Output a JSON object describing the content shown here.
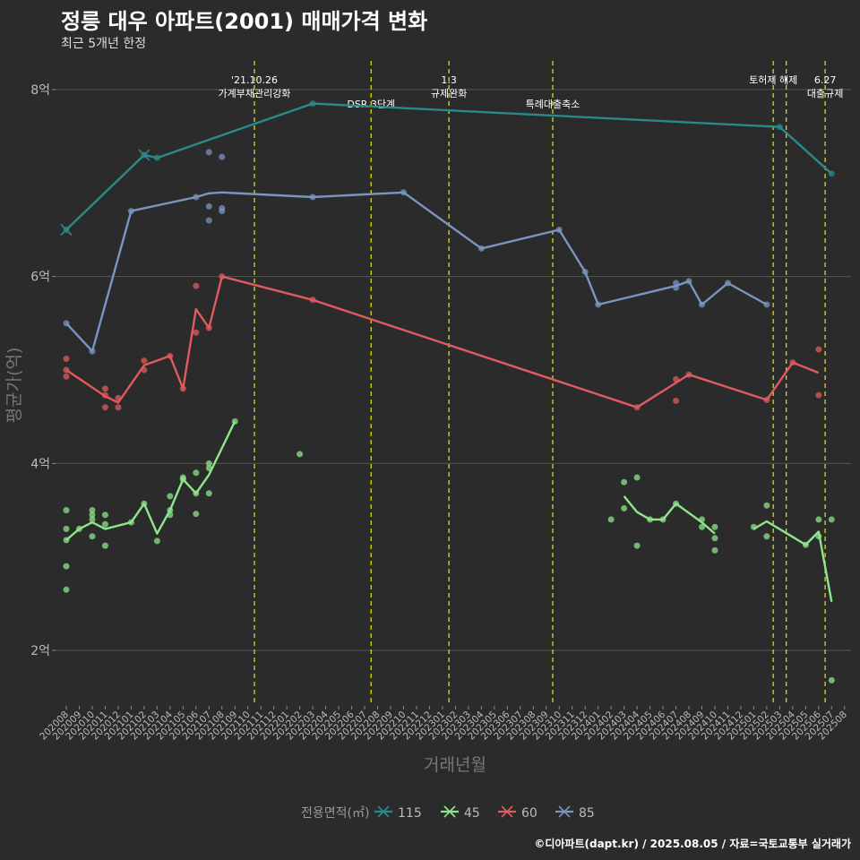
{
  "header": {
    "title": "정릉 대우 아파트(2001) 매매가격 변화",
    "subtitle": "최근 5개년 한정"
  },
  "caption": "©디아파트(dapt.kr) / 2025.08.05 / 자료=국토교통부 실거래가",
  "chart_data": {
    "type": "line",
    "title": "정릉 대우 아파트(2001) 매매가격 변화",
    "xlabel": "거래년월",
    "ylabel": "평균가(억)",
    "ylim": [
      1.3,
      8.3
    ],
    "yticks": [
      2,
      4,
      6,
      8
    ],
    "ytick_labels": [
      "2억",
      "4억",
      "6억",
      "8억"
    ],
    "x_months": [
      "202008",
      "202009",
      "202010",
      "202011",
      "202012",
      "202101",
      "202102",
      "202103",
      "202104",
      "202105",
      "202106",
      "202107",
      "202108",
      "202109",
      "202110",
      "202111",
      "202112",
      "202201",
      "202202",
      "202203",
      "202204",
      "202205",
      "202206",
      "202207",
      "202208",
      "202209",
      "202210",
      "202211",
      "202212",
      "202301",
      "202302",
      "202303",
      "202304",
      "202305",
      "202306",
      "202307",
      "202308",
      "202309",
      "202310",
      "202311",
      "202312",
      "202401",
      "202402",
      "202403",
      "202404",
      "202405",
      "202406",
      "202407",
      "202408",
      "202409",
      "202410",
      "202411",
      "202412",
      "202501",
      "202502",
      "202503",
      "202504",
      "202505",
      "202506",
      "202507",
      "202508"
    ],
    "legend": {
      "title": "전용면적(㎡)",
      "entries": [
        "115",
        "45",
        "60",
        "85"
      ]
    },
    "colors": {
      "115": "#2a8a8a",
      "45": "#8ee68a",
      "60": "#e05a5e",
      "85": "#7a95c0",
      "vline": "#d8d820",
      "grid": "#555555"
    },
    "annotations": [
      {
        "month": "202110",
        "lines": [
          "'21.10.26",
          "가계부채관리강화"
        ],
        "row": 0
      },
      {
        "month": "202207",
        "lines": [
          "DSR 3단계"
        ],
        "row": 1
      },
      {
        "month": "202301",
        "lines": [
          "1.3",
          "규제완화"
        ],
        "row": 0
      },
      {
        "month": "202309",
        "lines": [
          "특례대출축소"
        ],
        "row": 1
      },
      {
        "month": "202502",
        "lines": [
          "토허제 해제"
        ],
        "row": 0
      },
      {
        "month": "202503",
        "lines": [],
        "row": 0
      },
      {
        "month": "202506",
        "lines": [
          "6.27",
          "대출규제"
        ],
        "row": 0
      }
    ],
    "series": [
      {
        "name": "115",
        "line": [
          [
            "202008",
            6.5
          ],
          [
            "202102",
            7.3
          ],
          [
            "202103",
            7.27
          ],
          [
            "202203",
            7.85
          ],
          [
            "202503",
            7.6
          ],
          [
            "202507",
            7.1
          ]
        ],
        "points": [
          [
            "202008",
            6.5
          ],
          [
            "202102",
            7.3
          ],
          [
            "202103",
            7.27
          ],
          [
            "202203",
            7.85
          ],
          [
            "202503",
            7.6
          ],
          [
            "202507",
            7.1
          ]
        ],
        "cross": [
          [
            "202008",
            6.5
          ],
          [
            "202102",
            7.3
          ]
        ]
      },
      {
        "name": "85",
        "line": [
          [
            "202008",
            5.5
          ],
          [
            "202010",
            5.2
          ],
          [
            "202101",
            6.7
          ],
          [
            "202106",
            6.85
          ],
          [
            "202107",
            6.89
          ],
          [
            "202108",
            6.9
          ],
          [
            "202203",
            6.85
          ],
          [
            "202210",
            6.9
          ],
          [
            "202304",
            6.3
          ],
          [
            "202310",
            6.5
          ],
          [
            "202312",
            6.05
          ],
          [
            "202401",
            5.7
          ],
          [
            "202407",
            5.9
          ],
          [
            "202408",
            5.95
          ],
          [
            "202409",
            5.7
          ],
          [
            "202411",
            5.93
          ],
          [
            "202502",
            5.7
          ]
        ],
        "points": [
          [
            "202008",
            5.5
          ],
          [
            "202010",
            5.2
          ],
          [
            "202101",
            6.7
          ],
          [
            "202106",
            6.85
          ],
          [
            "202107",
            7.33
          ],
          [
            "202107",
            6.75
          ],
          [
            "202107",
            6.6
          ],
          [
            "202108",
            7.28
          ],
          [
            "202108",
            6.73
          ],
          [
            "202108",
            6.7
          ],
          [
            "202203",
            6.85
          ],
          [
            "202210",
            6.9
          ],
          [
            "202304",
            6.3
          ],
          [
            "202310",
            6.5
          ],
          [
            "202312",
            6.05
          ],
          [
            "202401",
            5.7
          ],
          [
            "202407",
            5.93
          ],
          [
            "202407",
            5.88
          ],
          [
            "202408",
            5.95
          ],
          [
            "202409",
            5.7
          ],
          [
            "202411",
            5.93
          ],
          [
            "202502",
            5.7
          ]
        ],
        "cross": []
      },
      {
        "name": "60",
        "line": [
          [
            "202008",
            5.0
          ],
          [
            "202011",
            4.72
          ],
          [
            "202012",
            4.65
          ],
          [
            "202102",
            5.05
          ],
          [
            "202104",
            5.15
          ],
          [
            "202105",
            4.8
          ],
          [
            "202106",
            5.65
          ],
          [
            "202107",
            5.45
          ],
          [
            "202108",
            6.0
          ],
          [
            "202203",
            5.75
          ],
          [
            "202404",
            4.6
          ],
          [
            "202408",
            4.95
          ],
          [
            "202502",
            4.68
          ],
          [
            "202504",
            5.08
          ],
          [
            "202506",
            4.97
          ]
        ],
        "points": [
          [
            "202008",
            5.12
          ],
          [
            "202008",
            5.0
          ],
          [
            "202008",
            4.93
          ],
          [
            "202011",
            4.8
          ],
          [
            "202011",
            4.73
          ],
          [
            "202011",
            4.6
          ],
          [
            "202012",
            4.7
          ],
          [
            "202012",
            4.6
          ],
          [
            "202102",
            5.1
          ],
          [
            "202102",
            5.0
          ],
          [
            "202104",
            5.15
          ],
          [
            "202105",
            4.8
          ],
          [
            "202106",
            5.9
          ],
          [
            "202106",
            5.4
          ],
          [
            "202107",
            5.45
          ],
          [
            "202108",
            6.0
          ],
          [
            "202203",
            5.75
          ],
          [
            "202404",
            4.6
          ],
          [
            "202407",
            4.9
          ],
          [
            "202407",
            4.67
          ],
          [
            "202408",
            4.95
          ],
          [
            "202502",
            4.68
          ],
          [
            "202504",
            5.08
          ],
          [
            "202506",
            5.22
          ],
          [
            "202506",
            4.73
          ]
        ],
        "cross": []
      },
      {
        "name": "45",
        "segments": [
          [
            [
              "202008",
              3.18
            ],
            [
              "202009",
              3.3
            ],
            [
              "202010",
              3.37
            ],
            [
              "202011",
              3.3
            ],
            [
              "202101",
              3.37
            ],
            [
              "202102",
              3.57
            ],
            [
              "202103",
              3.25
            ],
            [
              "202104",
              3.5
            ],
            [
              "202105",
              3.83
            ],
            [
              "202106",
              3.68
            ],
            [
              "202107",
              3.88
            ],
            [
              "202109",
              4.45
            ]
          ],
          [
            [
              "202403",
              3.65
            ],
            [
              "202404",
              3.48
            ],
            [
              "202405",
              3.4
            ],
            [
              "202406",
              3.4
            ],
            [
              "202407",
              3.57
            ],
            [
              "202409",
              3.37
            ],
            [
              "202410",
              3.25
            ]
          ],
          [
            [
              "202501",
              3.3
            ],
            [
              "202502",
              3.38
            ],
            [
              "202505",
              3.13
            ],
            [
              "202506",
              3.27
            ],
            [
              "202507",
              2.52
            ]
          ]
        ],
        "points": [
          [
            "202008",
            3.5
          ],
          [
            "202008",
            3.3
          ],
          [
            "202008",
            3.18
          ],
          [
            "202008",
            2.9
          ],
          [
            "202008",
            2.65
          ],
          [
            "202009",
            3.3
          ],
          [
            "202010",
            3.5
          ],
          [
            "202010",
            3.45
          ],
          [
            "202010",
            3.4
          ],
          [
            "202010",
            3.22
          ],
          [
            "202011",
            3.45
          ],
          [
            "202011",
            3.35
          ],
          [
            "202011",
            3.12
          ],
          [
            "202101",
            3.37
          ],
          [
            "202102",
            3.57
          ],
          [
            "202103",
            3.17
          ],
          [
            "202104",
            3.65
          ],
          [
            "202104",
            3.5
          ],
          [
            "202104",
            3.45
          ],
          [
            "202105",
            3.85
          ],
          [
            "202105",
            3.83
          ],
          [
            "202106",
            3.9
          ],
          [
            "202106",
            3.68
          ],
          [
            "202106",
            3.46
          ],
          [
            "202107",
            4.0
          ],
          [
            "202107",
            3.95
          ],
          [
            "202107",
            3.68
          ],
          [
            "202109",
            4.45
          ],
          [
            "202202",
            4.1
          ],
          [
            "202402",
            3.4
          ],
          [
            "202403",
            3.8
          ],
          [
            "202403",
            3.52
          ],
          [
            "202404",
            3.85
          ],
          [
            "202404",
            3.12
          ],
          [
            "202405",
            3.4
          ],
          [
            "202406",
            3.4
          ],
          [
            "202407",
            3.57
          ],
          [
            "202409",
            3.4
          ],
          [
            "202409",
            3.32
          ],
          [
            "202410",
            3.32
          ],
          [
            "202410",
            3.2
          ],
          [
            "202410",
            3.07
          ],
          [
            "202501",
            3.32
          ],
          [
            "202502",
            3.55
          ],
          [
            "202502",
            3.22
          ],
          [
            "202505",
            3.13
          ],
          [
            "202506",
            3.4
          ],
          [
            "202506",
            3.22
          ],
          [
            "202507",
            3.4
          ],
          [
            "202507",
            1.68
          ]
        ],
        "cross": []
      }
    ]
  }
}
